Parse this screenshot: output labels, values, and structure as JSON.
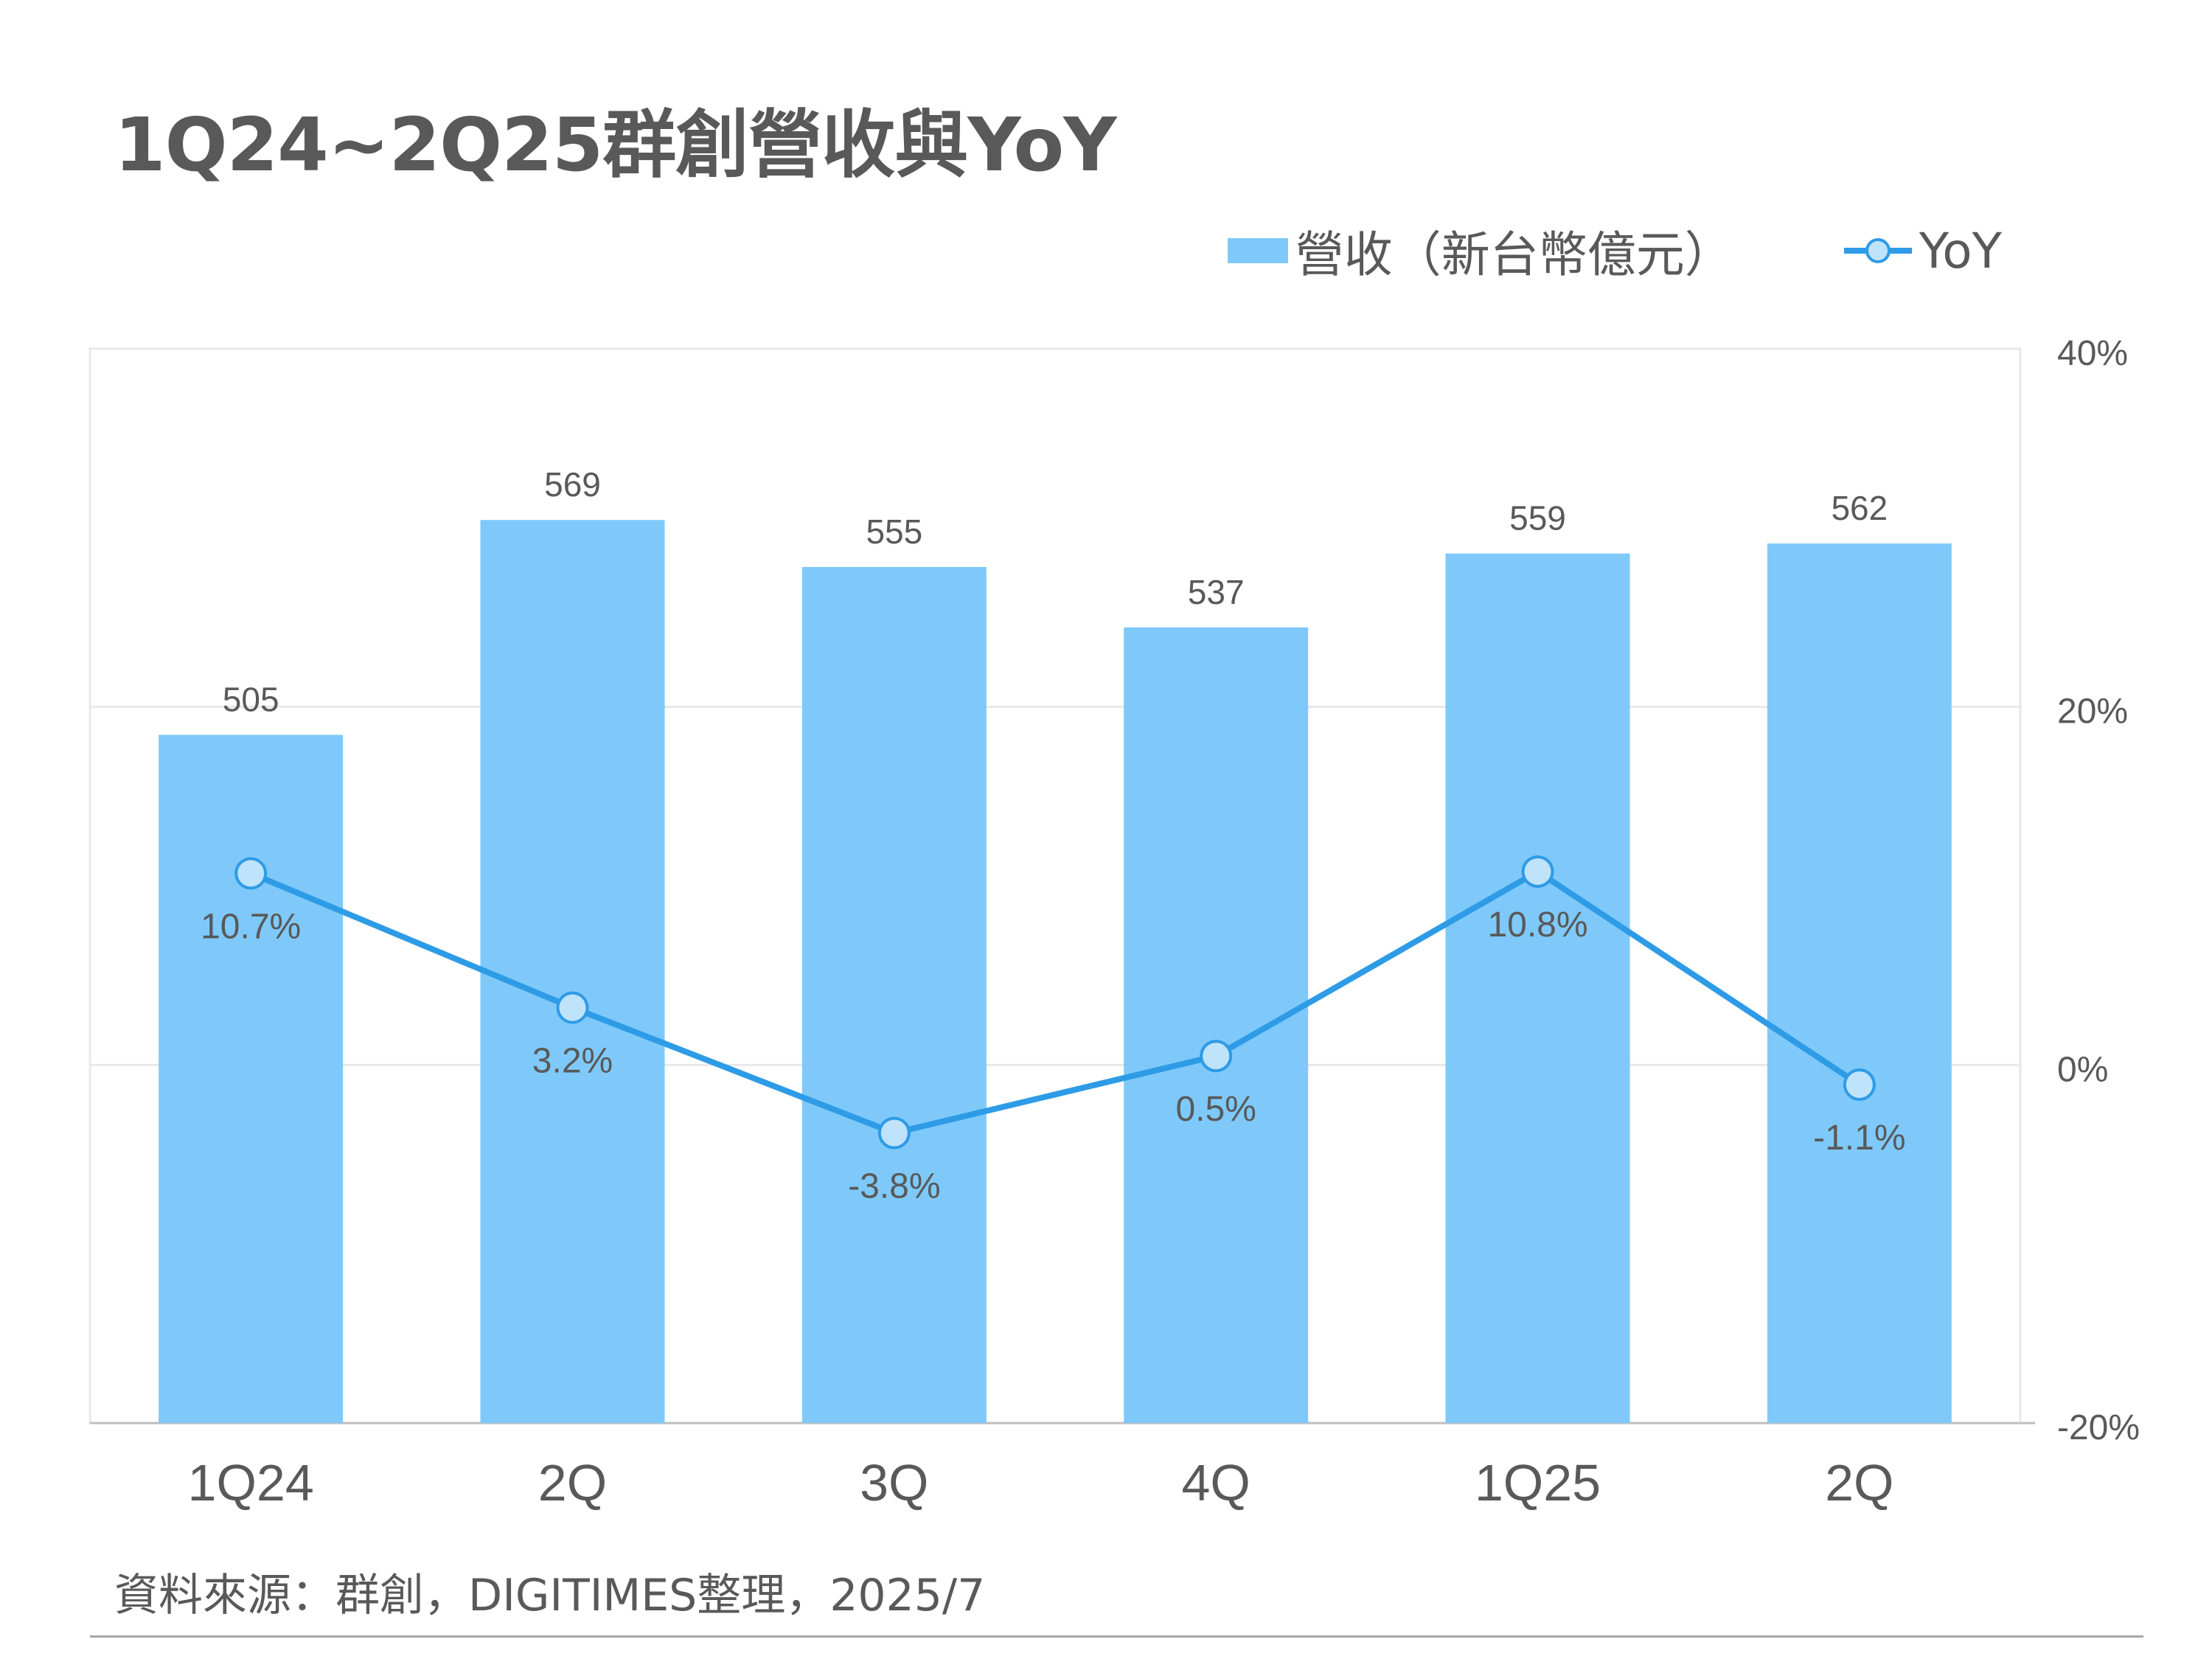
{
  "title": "1Q24~2Q25群創營收與YoY",
  "source": "資料來源：群創，DIGITIMES整理，2025/7",
  "colors": {
    "bar": "#7ec9f9",
    "line": "#2e9be6",
    "marker_fill": "#bfe3fb",
    "text": "#595959",
    "grid": "#e8e8e8"
  },
  "chart_data": {
    "type": "bar+line",
    "categories": [
      "1Q24",
      "2Q",
      "3Q",
      "4Q",
      "1Q25",
      "2Q"
    ],
    "series": [
      {
        "name": "營收（新台幣億元）",
        "type": "bar",
        "axis": "left",
        "values": [
          505,
          569,
          555,
          537,
          559,
          562
        ],
        "labels": [
          "505",
          "569",
          "555",
          "537",
          "559",
          "562"
        ]
      },
      {
        "name": "YoY",
        "type": "line",
        "axis": "right",
        "values": [
          10.7,
          3.2,
          -3.8,
          0.5,
          10.8,
          -1.1
        ],
        "labels": [
          "10.7%",
          "3.2%",
          "-3.8%",
          "0.5%",
          "10.8%",
          "-1.1%"
        ]
      }
    ],
    "left_axis": {
      "visible": false,
      "ylim": [
        300,
        620
      ]
    },
    "right_axis": {
      "ylim": [
        -20,
        40
      ],
      "ticks": [
        40,
        20,
        0,
        -20
      ],
      "tick_labels": [
        "40%",
        "20%",
        "0%",
        "-20%"
      ]
    },
    "grid": true,
    "legend_position": "top-right"
  }
}
